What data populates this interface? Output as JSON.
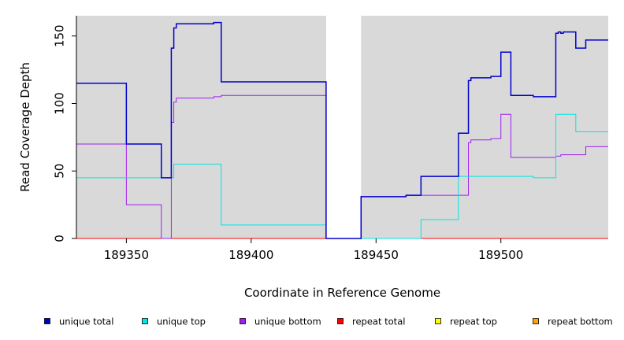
{
  "chart_data": {
    "type": "line",
    "step": true,
    "xlabel": "Coordinate in Reference Genome",
    "ylabel": "Read Coverage Depth",
    "xlim": [
      189330,
      189543
    ],
    "ylim": [
      0,
      165
    ],
    "xticks": [
      189350,
      189400,
      189450,
      189500
    ],
    "yticks": [
      0,
      50,
      100,
      150
    ],
    "background": "#d9d9d9",
    "gap_region": [
      189430,
      189444
    ],
    "grid": false,
    "legend_position": "bottom",
    "series": [
      {
        "name": "unique total",
        "color": "#0000cc",
        "width": 1.5,
        "points": [
          [
            189330,
            115
          ],
          [
            189350,
            115
          ],
          [
            189350,
            70
          ],
          [
            189364,
            70
          ],
          [
            189364,
            45
          ],
          [
            189368,
            45
          ],
          [
            189368,
            141
          ],
          [
            189369,
            141
          ],
          [
            189369,
            156
          ],
          [
            189370,
            156
          ],
          [
            189370,
            159
          ],
          [
            189385,
            159
          ],
          [
            189385,
            160
          ],
          [
            189388,
            160
          ],
          [
            189388,
            116
          ],
          [
            189430,
            116
          ],
          [
            189430,
            0
          ],
          [
            189444,
            0
          ],
          [
            189444,
            31
          ],
          [
            189462,
            31
          ],
          [
            189462,
            32
          ],
          [
            189468,
            32
          ],
          [
            189468,
            46
          ],
          [
            189483,
            46
          ],
          [
            189483,
            78
          ],
          [
            189487,
            78
          ],
          [
            189487,
            117
          ],
          [
            189488,
            117
          ],
          [
            189488,
            119
          ],
          [
            189496,
            119
          ],
          [
            189496,
            120
          ],
          [
            189500,
            120
          ],
          [
            189500,
            138
          ],
          [
            189504,
            138
          ],
          [
            189504,
            106
          ],
          [
            189513,
            106
          ],
          [
            189513,
            105
          ],
          [
            189522,
            105
          ],
          [
            189522,
            152
          ],
          [
            189523,
            152
          ],
          [
            189523,
            153
          ],
          [
            189524,
            153
          ],
          [
            189524,
            152
          ],
          [
            189525,
            152
          ],
          [
            189525,
            153
          ],
          [
            189530,
            153
          ],
          [
            189530,
            141
          ],
          [
            189534,
            141
          ],
          [
            189534,
            147
          ],
          [
            189543,
            147
          ]
        ]
      },
      {
        "name": "unique top",
        "color": "#00e5e5",
        "width": 1,
        "points": [
          [
            189330,
            45
          ],
          [
            189369,
            45
          ],
          [
            189369,
            55
          ],
          [
            189388,
            55
          ],
          [
            189388,
            10
          ],
          [
            189430,
            10
          ],
          [
            189430,
            0
          ],
          [
            189468,
            0
          ],
          [
            189468,
            14
          ],
          [
            189483,
            14
          ],
          [
            189483,
            46
          ],
          [
            189513,
            46
          ],
          [
            189513,
            45
          ],
          [
            189522,
            45
          ],
          [
            189522,
            92
          ],
          [
            189530,
            92
          ],
          [
            189530,
            79
          ],
          [
            189543,
            79
          ]
        ]
      },
      {
        "name": "unique bottom",
        "color": "#a020f0",
        "width": 1,
        "points": [
          [
            189330,
            70
          ],
          [
            189350,
            70
          ],
          [
            189350,
            25
          ],
          [
            189364,
            25
          ],
          [
            189364,
            0
          ],
          [
            189368,
            0
          ],
          [
            189368,
            86
          ],
          [
            189369,
            86
          ],
          [
            189369,
            101
          ],
          [
            189370,
            101
          ],
          [
            189370,
            104
          ],
          [
            189385,
            104
          ],
          [
            189385,
            105
          ],
          [
            189388,
            105
          ],
          [
            189388,
            106
          ],
          [
            189430,
            106
          ],
          [
            189430,
            0
          ],
          [
            189444,
            0
          ],
          [
            189444,
            31
          ],
          [
            189462,
            31
          ],
          [
            189462,
            32
          ],
          [
            189487,
            32
          ],
          [
            189487,
            71
          ],
          [
            189488,
            71
          ],
          [
            189488,
            73
          ],
          [
            189496,
            73
          ],
          [
            189496,
            74
          ],
          [
            189500,
            74
          ],
          [
            189500,
            92
          ],
          [
            189504,
            92
          ],
          [
            189504,
            60
          ],
          [
            189522,
            60
          ],
          [
            189522,
            61
          ],
          [
            189524,
            61
          ],
          [
            189524,
            62
          ],
          [
            189534,
            62
          ],
          [
            189534,
            68
          ],
          [
            189543,
            68
          ]
        ]
      },
      {
        "name": "repeat total",
        "color": "#ff0000",
        "width": 1,
        "points": [
          [
            189330,
            0
          ],
          [
            189543,
            0
          ]
        ]
      },
      {
        "name": "repeat top",
        "color": "#ffff00",
        "width": 1,
        "points": [
          [
            189330,
            0
          ],
          [
            189543,
            0
          ]
        ]
      },
      {
        "name": "repeat bottom",
        "color": "#ffa500",
        "width": 1,
        "points": [
          [
            189330,
            0
          ],
          [
            189543,
            0
          ]
        ]
      }
    ]
  }
}
